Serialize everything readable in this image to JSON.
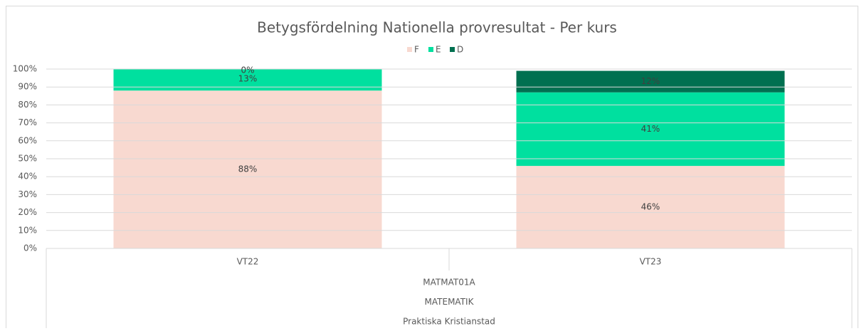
{
  "chart_data": {
    "type": "stacked_bar",
    "title": "Betygsfördelning Nationella provresultat - Per kurs",
    "categories": [
      "VT22",
      "VT23"
    ],
    "category_groups": [
      "MATMAT01A",
      "MATEMATIK",
      "Praktiska Kristianstad"
    ],
    "series": [
      {
        "name": "F",
        "color": "#f8d9d0",
        "values": [
          88,
          46
        ],
        "value_labels": [
          "88%",
          "46%"
        ]
      },
      {
        "name": "E",
        "color": "#00e09f",
        "values": [
          13,
          41
        ],
        "value_labels": [
          "13%",
          "41%"
        ]
      },
      {
        "name": "D",
        "color": "#007050",
        "values": [
          0,
          12
        ],
        "value_labels": [
          "0%",
          "12%"
        ]
      }
    ],
    "ylim": [
      0,
      100
    ],
    "yticks": [
      {
        "value": 0,
        "label": "0%"
      },
      {
        "value": 10,
        "label": "10%"
      },
      {
        "value": 20,
        "label": "20%"
      },
      {
        "value": 30,
        "label": "30%"
      },
      {
        "value": 40,
        "label": "40%"
      },
      {
        "value": 50,
        "label": "50%"
      },
      {
        "value": 60,
        "label": "60%"
      },
      {
        "value": 70,
        "label": "70%"
      },
      {
        "value": 80,
        "label": "80%"
      },
      {
        "value": 90,
        "label": "90%"
      },
      {
        "value": 100,
        "label": "100%"
      }
    ],
    "grid": true,
    "legend": "top"
  }
}
